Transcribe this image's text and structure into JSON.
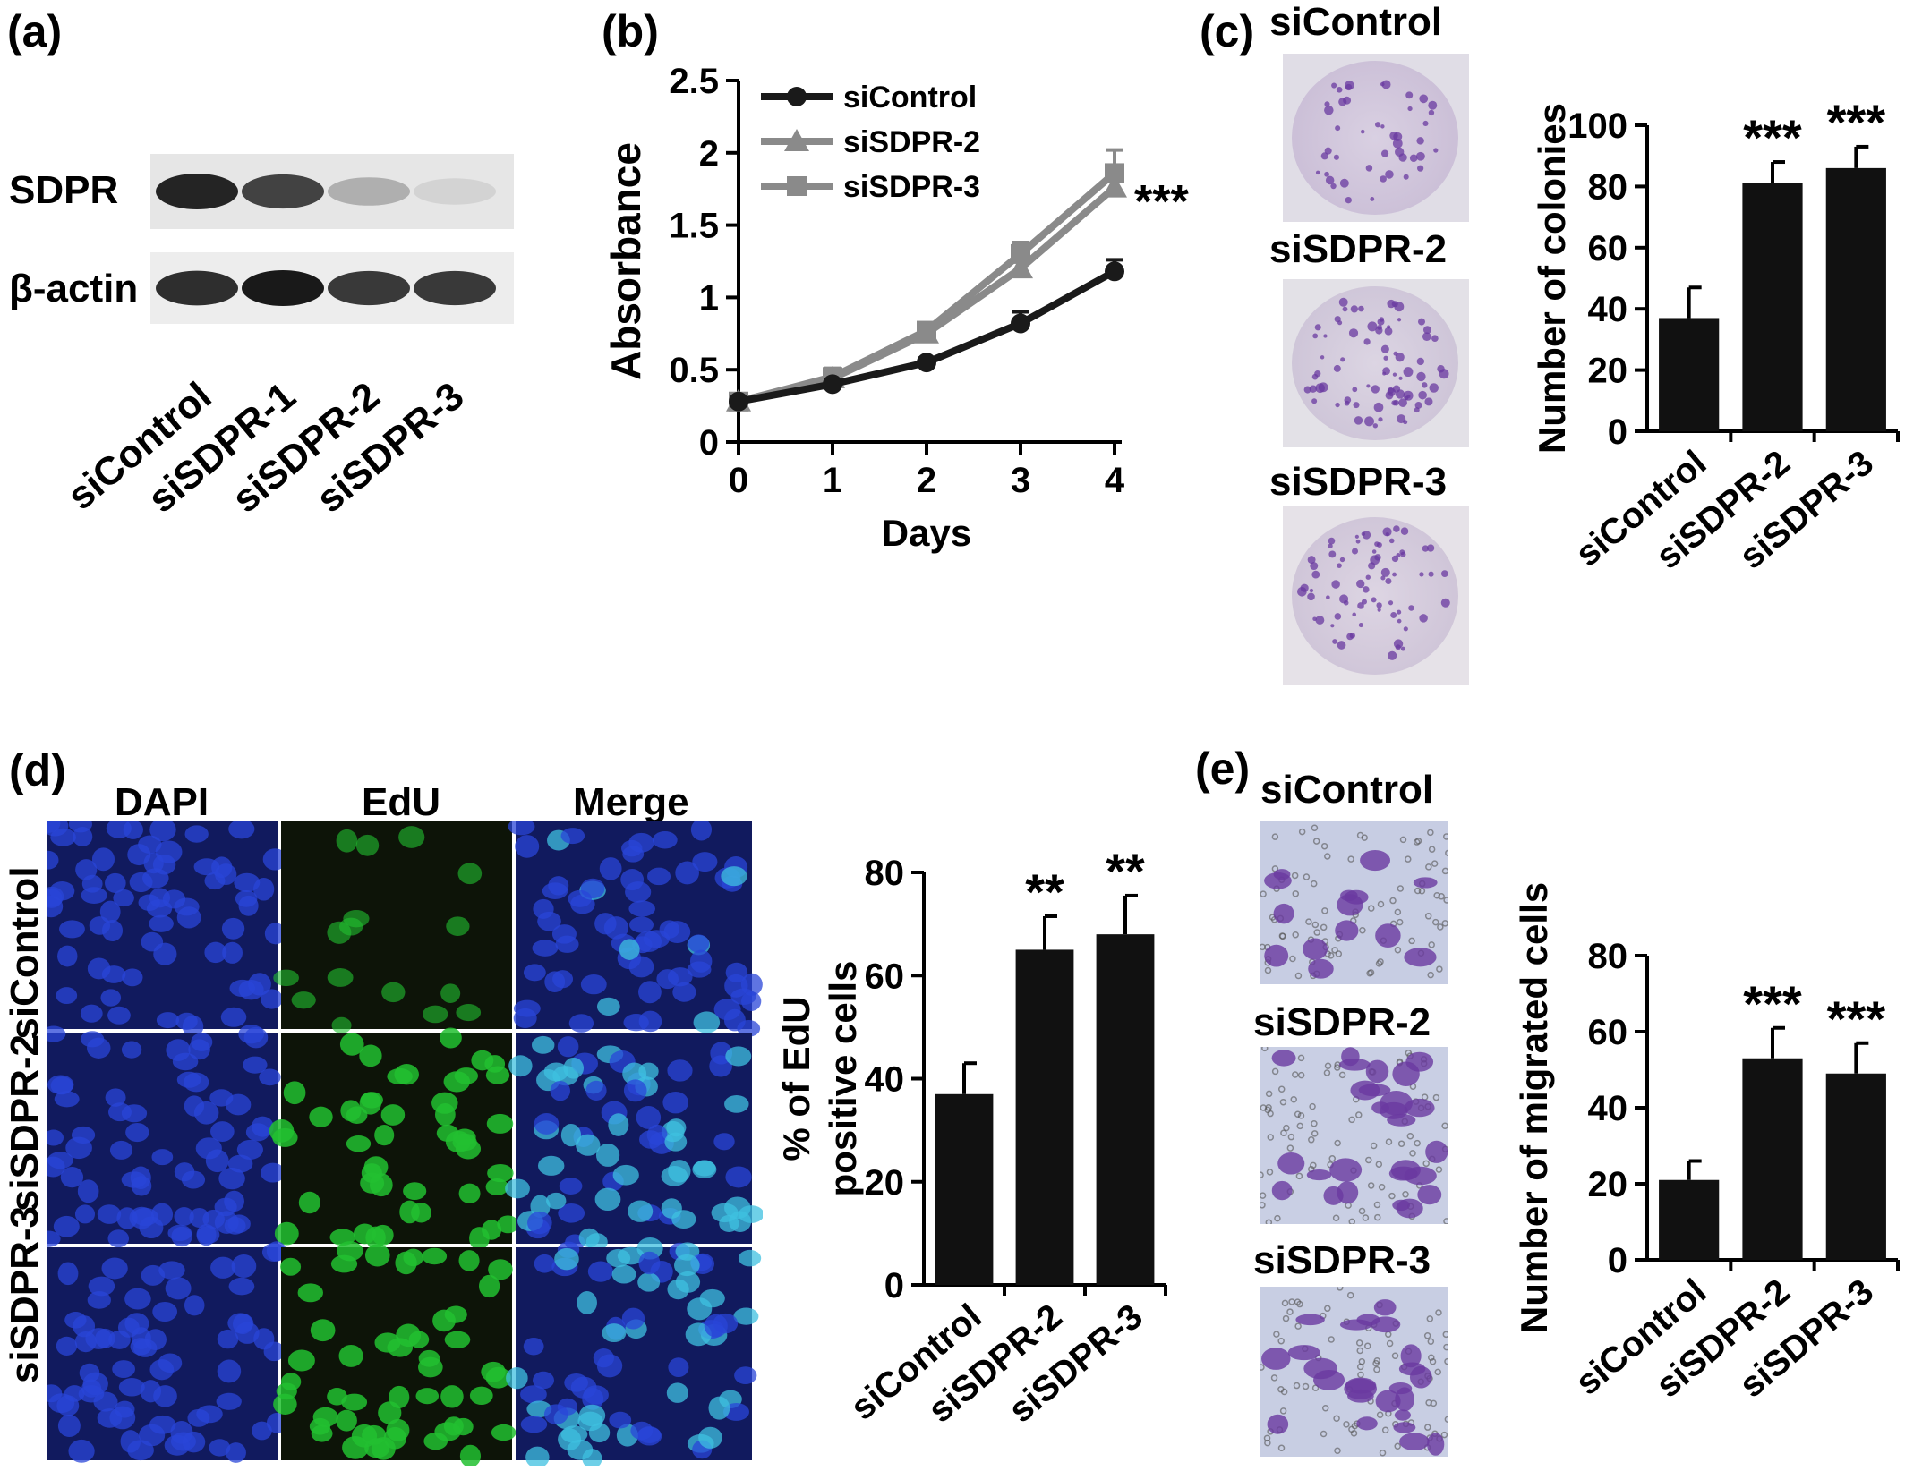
{
  "panels": {
    "a": {
      "label": "(a)",
      "rows": [
        "SDPR",
        "β-actin"
      ],
      "lanes": [
        "siControl",
        "siSDPR-1",
        "siSDPR-2",
        "siSDPR-3"
      ],
      "band_intensity": {
        "SDPR": [
          1.0,
          0.85,
          0.3,
          0.12
        ],
        "beta_actin": [
          0.9,
          1.0,
          0.85,
          0.85
        ]
      }
    },
    "b": {
      "label": "(b)"
    },
    "c": {
      "label": "(c)",
      "dish_labels": [
        "siControl",
        "siSDPR-2",
        "siSDPR-3"
      ]
    },
    "d": {
      "label": "(d)",
      "col_labels": [
        "DAPI",
        "EdU",
        "Merge"
      ],
      "row_labels": [
        "siControl",
        "siSDPR-2",
        "siSDPR-3"
      ]
    },
    "e": {
      "label": "(e)",
      "img_labels": [
        "siControl",
        "siSDPR-2",
        "siSDPR-3"
      ]
    }
  },
  "colors": {
    "bar": "#111111",
    "control_line": "#1a1a1a",
    "sdpr_line": "#8a8a8a",
    "dapi": "#1a2fb0",
    "edu": "#22c030",
    "stain": "#6a3aa0"
  },
  "chart_data": [
    {
      "id": "b",
      "type": "line",
      "xlabel": "Days",
      "ylabel": "Absorbance",
      "x": [
        0,
        1,
        2,
        3,
        4
      ],
      "xticks": [
        "0",
        "1",
        "2",
        "3",
        "4"
      ],
      "ylim": [
        0,
        2.5
      ],
      "yticks": [
        "0",
        "0.5",
        "1",
        "1.5",
        "2",
        "2.5"
      ],
      "series": [
        {
          "name": "siControl",
          "values": [
            0.28,
            0.4,
            0.55,
            0.82,
            1.18
          ],
          "errors": [
            0.02,
            0.03,
            0.03,
            0.08,
            0.08
          ],
          "marker": "circle"
        },
        {
          "name": "siSDPR-2",
          "values": [
            0.28,
            0.44,
            0.75,
            1.2,
            1.76
          ],
          "errors": [
            0.02,
            0.05,
            0.05,
            0.08,
            0.12
          ],
          "marker": "triangle"
        },
        {
          "name": "siSDPR-3",
          "values": [
            0.28,
            0.45,
            0.77,
            1.3,
            1.86
          ],
          "errors": [
            0.02,
            0.06,
            0.05,
            0.08,
            0.16
          ],
          "marker": "square"
        }
      ],
      "annotation": "***",
      "legend": "top-left"
    },
    {
      "id": "c",
      "type": "bar",
      "categories": [
        "siControl",
        "siSDPR-2",
        "siSDPR-3"
      ],
      "values": [
        37,
        81,
        86
      ],
      "errors": [
        10,
        7,
        7
      ],
      "significance": [
        "",
        "***",
        "***"
      ],
      "ylabel": "Number of colonies",
      "ylim": [
        0,
        100
      ],
      "yticks": [
        "0",
        "20",
        "40",
        "60",
        "80",
        "100"
      ]
    },
    {
      "id": "d",
      "type": "bar",
      "categories": [
        "siControl",
        "siSDPR-2",
        "siSDPR-3"
      ],
      "values": [
        37,
        65,
        68
      ],
      "errors": [
        6,
        6.5,
        7.5
      ],
      "significance": [
        "",
        "**",
        "**"
      ],
      "ylabel": [
        "% of EdU",
        "positive cells"
      ],
      "ylim": [
        0,
        80
      ],
      "yticks": [
        "0",
        "20",
        "40",
        "60",
        "80"
      ]
    },
    {
      "id": "e",
      "type": "bar",
      "categories": [
        "siControl",
        "siSDPR-2",
        "siSDPR-3"
      ],
      "values": [
        21,
        53,
        49
      ],
      "errors": [
        5,
        8,
        8
      ],
      "significance": [
        "",
        "***",
        "***"
      ],
      "ylabel": "Number of migrated cells",
      "ylim": [
        0,
        80
      ],
      "yticks": [
        "0",
        "20",
        "40",
        "60",
        "80"
      ]
    }
  ]
}
